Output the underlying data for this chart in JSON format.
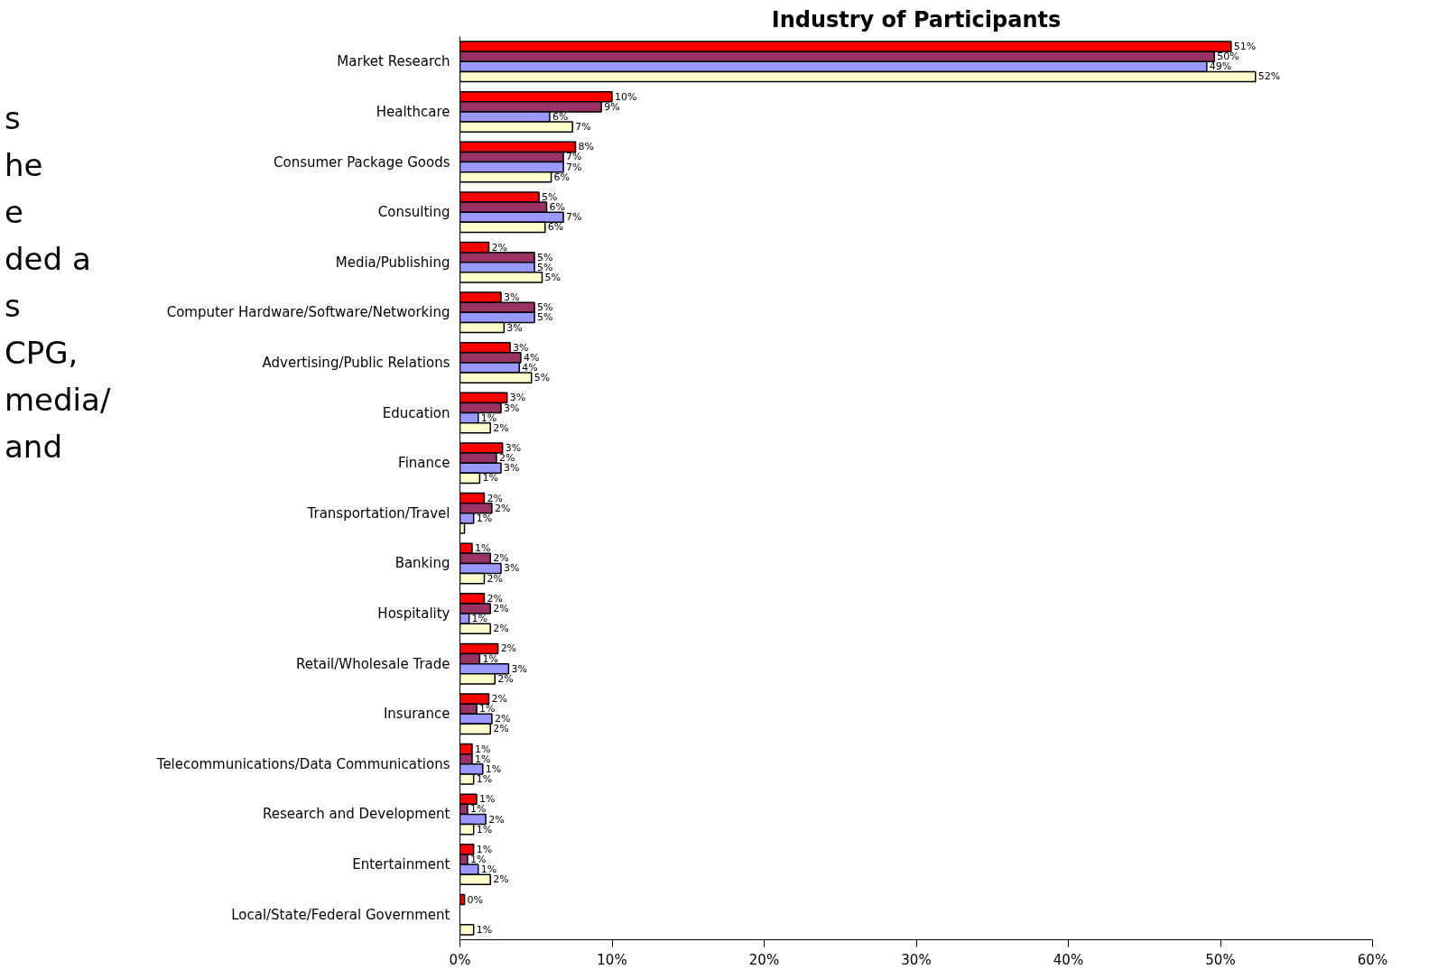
{
  "chart_data": {
    "type": "bar",
    "orientation": "horizontal",
    "title": "Industry of Participants",
    "categories": [
      "Market Research",
      "Healthcare",
      "Consumer Package Goods",
      "Consulting",
      "Media/Publishing",
      "Computer Hardware/Software/Networking",
      "Advertising/Public Relations",
      "Education",
      "Finance",
      "Transportation/Travel",
      "Banking",
      "Hospitality",
      "Retail/Wholesale Trade",
      "Insurance",
      "Telecommunications/Data Communications",
      "Research and Development",
      "Entertainment",
      "Local/State/Federal Government"
    ],
    "series": [
      {
        "color": "#ff0000",
        "values": [
          50.7,
          10.0,
          7.6,
          5.2,
          1.9,
          2.7,
          3.3,
          3.1,
          2.8,
          1.6,
          0.8,
          1.6,
          2.5,
          1.9,
          0.8,
          1.1,
          0.9,
          0.3
        ],
        "value_labels": [
          "51%",
          "10%",
          "8%",
          "5%",
          "2%",
          "3%",
          "3%",
          "3%",
          "3%",
          "2%",
          "1%",
          "2%",
          "2%",
          "2%",
          "1%",
          "1%",
          "1%",
          "0%"
        ]
      },
      {
        "color": "#993366",
        "values": [
          49.6,
          9.3,
          6.8,
          5.7,
          4.9,
          4.9,
          4.0,
          2.7,
          2.4,
          2.1,
          2.0,
          2.0,
          1.3,
          1.1,
          0.8,
          0.5,
          0.5,
          null
        ],
        "value_labels": [
          "50%",
          "9%",
          "7%",
          "6%",
          "5%",
          "5%",
          "4%",
          "3%",
          "2%",
          "2%",
          "2%",
          "2%",
          "1%",
          "1%",
          "1%",
          "1%",
          "1%",
          null
        ]
      },
      {
        "color": "#9999ff",
        "values": [
          49.1,
          5.9,
          6.8,
          6.8,
          4.9,
          4.9,
          3.9,
          1.2,
          2.7,
          0.9,
          2.7,
          0.6,
          3.2,
          2.1,
          1.5,
          1.7,
          1.2,
          null
        ],
        "value_labels": [
          "49%",
          "6%",
          "7%",
          "7%",
          "5%",
          "5%",
          "4%",
          "1%",
          "3%",
          "1%",
          "3%",
          "1%",
          "3%",
          "2%",
          "1%",
          "2%",
          "1%",
          null
        ]
      },
      {
        "color": "#ffffcc",
        "values": [
          52.3,
          7.4,
          6.0,
          5.6,
          5.4,
          2.9,
          4.7,
          2.0,
          1.3,
          0.3,
          1.6,
          2.0,
          2.3,
          2.0,
          0.9,
          0.9,
          2.0,
          0.9
        ],
        "value_labels": [
          "52%",
          "7%",
          "6%",
          "6%",
          "5%",
          "3%",
          "5%",
          "2%",
          "1%",
          null,
          "2%",
          "2%",
          "2%",
          "2%",
          "1%",
          "1%",
          "2%",
          "1%"
        ]
      }
    ],
    "xlim": [
      0,
      60
    ],
    "xticks": [
      {
        "value": 0,
        "label": "0%"
      },
      {
        "value": 10,
        "label": "10%"
      },
      {
        "value": 20,
        "label": "20%"
      },
      {
        "value": 30,
        "label": "30%"
      },
      {
        "value": 40,
        "label": "40%"
      },
      {
        "value": 50,
        "label": "50%"
      },
      {
        "value": 60,
        "label": "60%"
      }
    ],
    "grid": false,
    "annotations": [
      "s",
      "he",
      "e",
      "ded a",
      "s",
      "CPG,",
      "media/",
      "and"
    ]
  }
}
